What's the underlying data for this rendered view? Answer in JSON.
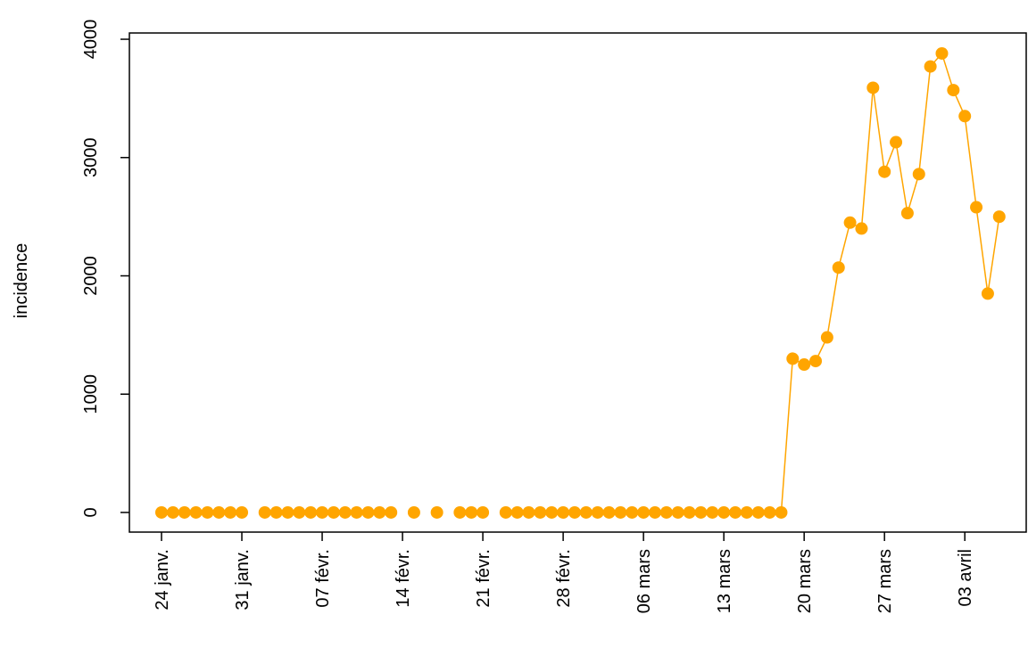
{
  "chart_data": {
    "type": "line",
    "y_label": "incidence",
    "color": "#FFA500",
    "categories": [
      "24 janv.",
      null,
      null,
      null,
      null,
      null,
      null,
      "31 janv.",
      null,
      null,
      null,
      null,
      null,
      null,
      "07 févr.",
      null,
      null,
      null,
      null,
      null,
      null,
      "14 févr.",
      null,
      null,
      null,
      null,
      null,
      null,
      "21 févr.",
      null,
      null,
      null,
      null,
      null,
      null,
      "28 févr.",
      null,
      null,
      null,
      null,
      null,
      null,
      "06 mars",
      null,
      null,
      null,
      null,
      null,
      null,
      "13 mars",
      null,
      null,
      null,
      null,
      null,
      null,
      "20 mars",
      null,
      null,
      null,
      null,
      null,
      null,
      "27 mars",
      null,
      null,
      null,
      null,
      null,
      null,
      "03 avril",
      null,
      null,
      null
    ],
    "values": [
      0,
      0,
      0,
      0,
      0,
      0,
      0,
      0,
      null,
      0,
      0,
      0,
      0,
      0,
      0,
      0,
      0,
      0,
      0,
      0,
      0,
      null,
      0,
      null,
      0,
      null,
      0,
      0,
      0,
      null,
      0,
      0,
      0,
      0,
      0,
      0,
      0,
      0,
      0,
      0,
      0,
      0,
      0,
      0,
      0,
      0,
      0,
      0,
      0,
      0,
      0,
      0,
      0,
      0,
      0,
      1300,
      1250,
      1280,
      1480,
      2070,
      2450,
      2400,
      3590,
      2880,
      3130,
      2530,
      2860,
      3770,
      3880,
      3570,
      3350,
      2580,
      1850,
      2500
    ],
    "ylim": [
      -166,
      4053
    ],
    "yticks": [
      0,
      1000,
      2000,
      3000,
      4000
    ]
  }
}
